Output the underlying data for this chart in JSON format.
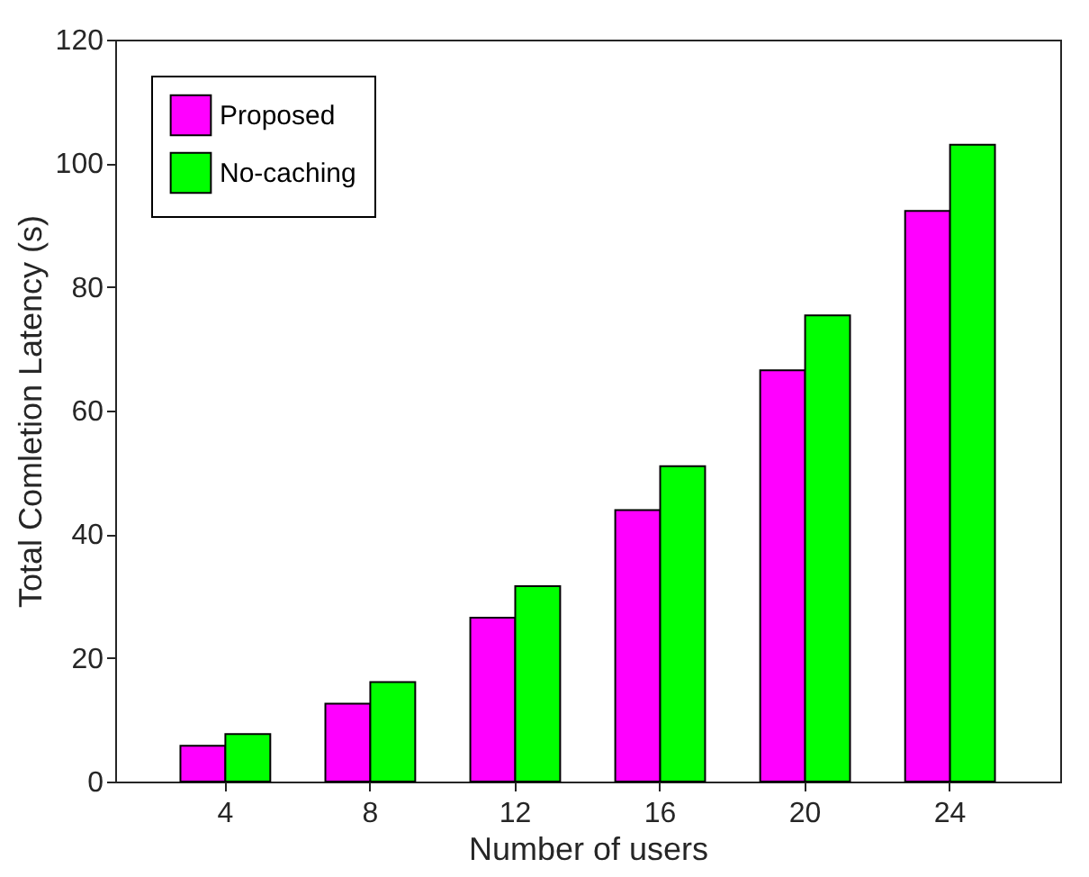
{
  "chart_data": {
    "type": "bar",
    "xlabel": "Number of users",
    "ylabel": "Total Comletion Latency (s)",
    "categories": [
      "4",
      "8",
      "12",
      "16",
      "20",
      "24"
    ],
    "series": [
      {
        "name": "Proposed",
        "color": "#ff00ff",
        "values": [
          5.8,
          12.6,
          26.5,
          43.9,
          66.5,
          92.3
        ]
      },
      {
        "name": "No-caching",
        "color": "#00ff00",
        "values": [
          7.7,
          16.1,
          31.6,
          51.0,
          75.4,
          103.0
        ]
      }
    ],
    "ylim": [
      0,
      120
    ],
    "yticks": [
      0,
      20,
      40,
      60,
      80,
      100,
      120
    ],
    "grid": false,
    "legend": "top left"
  }
}
